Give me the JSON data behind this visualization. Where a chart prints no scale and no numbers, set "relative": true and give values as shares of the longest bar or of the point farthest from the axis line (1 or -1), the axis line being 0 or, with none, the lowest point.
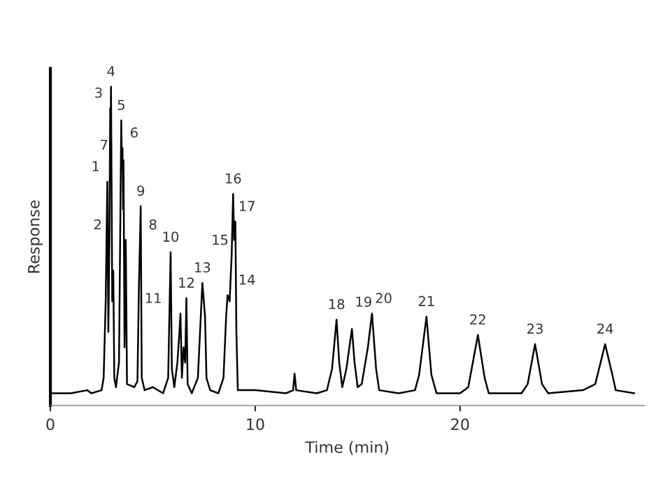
{
  "chart_data": {
    "type": "line",
    "relative": true,
    "xlabel": "Time (min)",
    "ylabel": "Response",
    "xlim": [
      0,
      29
    ],
    "xticks": [
      0,
      10,
      20
    ],
    "grid": false,
    "legend": false,
    "marker": "none",
    "line_style": "solid",
    "series": [
      {
        "color": "#000000",
        "x": [
          0,
          1.0,
          1.8,
          2.0,
          2.5,
          2.6,
          2.7,
          2.78,
          2.83,
          2.88,
          2.92,
          2.94,
          2.96,
          3.02,
          3.07,
          3.12,
          3.2,
          3.35,
          3.46,
          3.49,
          3.52,
          3.55,
          3.57,
          3.62,
          3.68,
          3.74,
          4.1,
          4.25,
          4.32,
          4.41,
          4.46,
          4.6,
          5.0,
          5.5,
          5.75,
          5.87,
          5.93,
          6.05,
          6.2,
          6.3,
          6.35,
          6.42,
          6.5,
          6.58,
          6.64,
          6.7,
          6.9,
          7.2,
          7.42,
          7.55,
          7.62,
          7.8,
          8.2,
          8.45,
          8.58,
          8.65,
          8.75,
          8.85,
          8.92,
          8.97,
          9.03,
          9.08,
          9.15,
          10,
          11.5,
          11.85,
          11.92,
          12.0,
          13.0,
          13.5,
          13.75,
          13.97,
          14.1,
          14.25,
          14.45,
          14.72,
          14.85,
          15.0,
          15.2,
          15.5,
          15.7,
          15.9,
          16.05,
          17.0,
          17.8,
          18.0,
          18.36,
          18.6,
          18.85,
          20.0,
          20.4,
          20.87,
          21.2,
          21.4,
          23.0,
          23.3,
          23.66,
          24.0,
          24.3,
          26.0,
          26.6,
          27.08,
          27.4,
          27.6,
          28.5
        ],
        "values": [
          0,
          0,
          0.01,
          0,
          0.01,
          0.05,
          0.3,
          0.69,
          0.2,
          0.5,
          0.93,
          0.85,
          1.0,
          0.3,
          0.4,
          0.05,
          0.02,
          0.1,
          0.89,
          0.75,
          0.8,
          0.6,
          0.76,
          0.15,
          0.5,
          0.03,
          0.02,
          0.04,
          0.34,
          0.61,
          0.05,
          0.01,
          0.02,
          0,
          0.05,
          0.46,
          0.08,
          0.02,
          0.1,
          0.2,
          0.26,
          0.05,
          0.15,
          0.1,
          0.31,
          0.03,
          0,
          0.05,
          0.36,
          0.25,
          0.05,
          0.01,
          0,
          0.05,
          0.25,
          0.32,
          0.3,
          0.45,
          0.65,
          0.5,
          0.56,
          0.2,
          0.01,
          0.01,
          0,
          0.01,
          0.064,
          0.01,
          0,
          0.01,
          0.08,
          0.24,
          0.1,
          0.02,
          0.08,
          0.21,
          0.1,
          0.02,
          0.03,
          0.15,
          0.26,
          0.08,
          0.01,
          0,
          0.01,
          0.06,
          0.25,
          0.06,
          0,
          0,
          0.02,
          0.19,
          0.05,
          0,
          0,
          0.03,
          0.16,
          0.03,
          0,
          0.01,
          0.03,
          0.16,
          0.07,
          0.01,
          0
        ]
      }
    ],
    "annotations": [
      {
        "text": "1",
        "x": 2.78,
        "y": 0.69
      },
      {
        "text": "2",
        "x": 2.88,
        "y": 0.5
      },
      {
        "text": "3",
        "x": 2.92,
        "y": 0.93
      },
      {
        "text": "4",
        "x": 2.96,
        "y": 1.0
      },
      {
        "text": "5",
        "x": 3.46,
        "y": 0.89
      },
      {
        "text": "6",
        "x": 3.52,
        "y": 0.8
      },
      {
        "text": "7",
        "x": 3.57,
        "y": 0.76
      },
      {
        "text": "8",
        "x": 3.68,
        "y": 0.5
      },
      {
        "text": "9",
        "x": 4.41,
        "y": 0.61
      },
      {
        "text": "10",
        "x": 5.87,
        "y": 0.46
      },
      {
        "text": "11",
        "x": 6.35,
        "y": 0.26
      },
      {
        "text": "12",
        "x": 6.64,
        "y": 0.31
      },
      {
        "text": "13",
        "x": 7.42,
        "y": 0.36
      },
      {
        "text": "14",
        "x": 8.65,
        "y": 0.32
      },
      {
        "text": "15",
        "x": 8.85,
        "y": 0.45
      },
      {
        "text": "16",
        "x": 8.92,
        "y": 0.65
      },
      {
        "text": "17",
        "x": 9.03,
        "y": 0.56
      },
      {
        "text": "18",
        "x": 13.97,
        "y": 0.24
      },
      {
        "text": "19",
        "x": 14.72,
        "y": 0.21
      },
      {
        "text": "20",
        "x": 15.7,
        "y": 0.26
      },
      {
        "text": "21",
        "x": 18.36,
        "y": 0.25
      },
      {
        "text": "22",
        "x": 20.87,
        "y": 0.19
      },
      {
        "text": "23",
        "x": 23.66,
        "y": 0.16
      },
      {
        "text": "24",
        "x": 27.08,
        "y": 0.16
      }
    ]
  }
}
